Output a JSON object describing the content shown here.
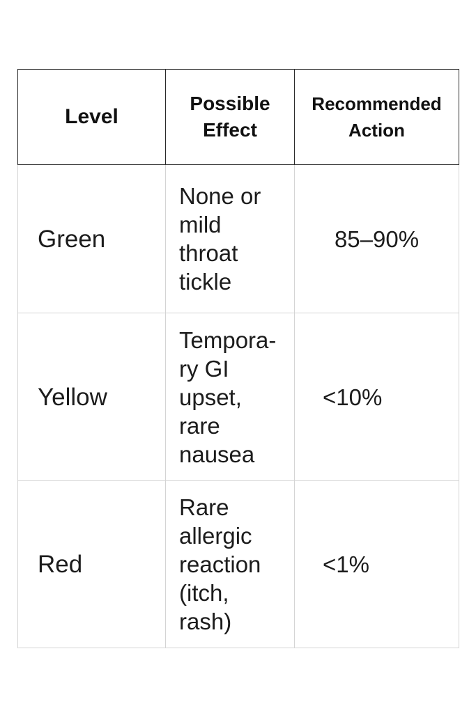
{
  "table": {
    "headers": {
      "level": [
        "Level"
      ],
      "effect": [
        "Possible",
        "Effect"
      ],
      "action": [
        "Recommended",
        "Action"
      ]
    },
    "rows": [
      {
        "level": "Green",
        "effect": [
          "None or",
          "mild",
          "throat",
          "tickle"
        ],
        "action": "85–90%"
      },
      {
        "level": "Yellow",
        "effect": [
          "Tempora-",
          "ry GI",
          "upset,",
          "rare",
          "nausea"
        ],
        "action": "<10%"
      },
      {
        "level": "Red",
        "effect": [
          "Rare",
          "allergic",
          "reaction",
          "(itch,",
          "rash)"
        ],
        "action": "<1%"
      }
    ]
  }
}
